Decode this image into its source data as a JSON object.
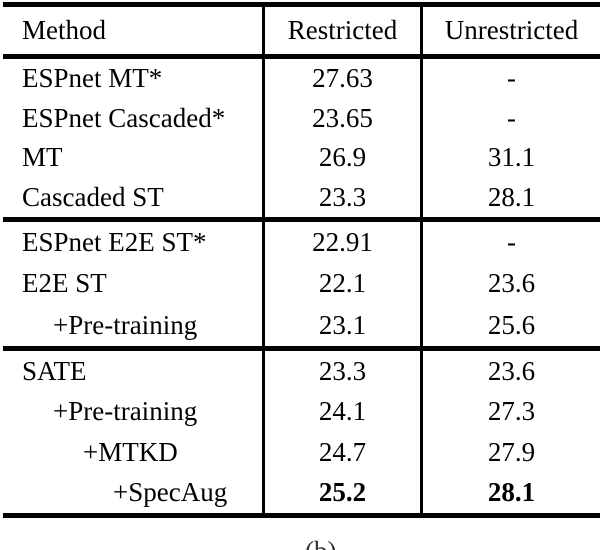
{
  "table": {
    "headers": {
      "method": "Method",
      "restricted": "Restricted",
      "unrestricted": "Unrestricted"
    },
    "sections": [
      {
        "rows": [
          {
            "method": "ESPnet MT*",
            "restricted": "27.63",
            "unrestricted": "-"
          },
          {
            "method": "ESPnet Cascaded*",
            "restricted": "23.65",
            "unrestricted": "-"
          },
          {
            "method": "MT",
            "restricted": "26.9",
            "unrestricted": "31.1"
          },
          {
            "method": "Cascaded ST",
            "restricted": "23.3",
            "unrestricted": "28.1"
          }
        ]
      },
      {
        "rows": [
          {
            "method": "ESPnet E2E ST*",
            "restricted": "22.91",
            "unrestricted": "-"
          },
          {
            "method": "E2E ST",
            "restricted": "22.1",
            "unrestricted": "23.6"
          },
          {
            "method": "+Pre-training",
            "restricted": "23.1",
            "unrestricted": "25.6"
          }
        ]
      },
      {
        "rows": [
          {
            "method": "SATE",
            "restricted": "23.3",
            "unrestricted": "23.6"
          },
          {
            "method": "+Pre-training",
            "restricted": "24.1",
            "unrestricted": "27.3"
          },
          {
            "method": "+MTKD",
            "restricted": "24.7",
            "unrestricted": "27.9"
          },
          {
            "method": "+SpecAug",
            "restricted": "25.2",
            "unrestricted": "28.1"
          }
        ]
      }
    ],
    "caption_fragment": "(b)"
  }
}
